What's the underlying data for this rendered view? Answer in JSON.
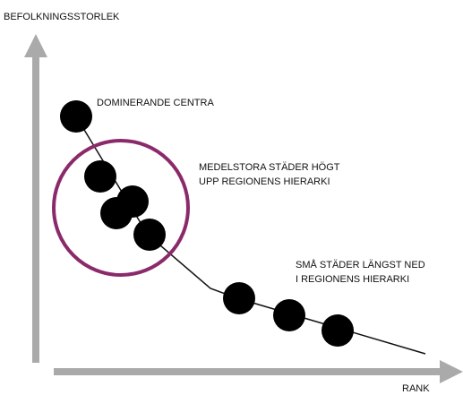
{
  "axis_labels": {
    "y": "BEFOLKNINGSSTORLEK",
    "x": "RANK"
  },
  "annotations": [
    "DOMINERANDE CENTRA",
    "MEDELSTORA STÄDER HÖGT",
    "UPP REGIONENS HIERARKI",
    "SMÅ STÄDER LÄNGST NED",
    "I REGIONENS HIERARKI"
  ]
}
